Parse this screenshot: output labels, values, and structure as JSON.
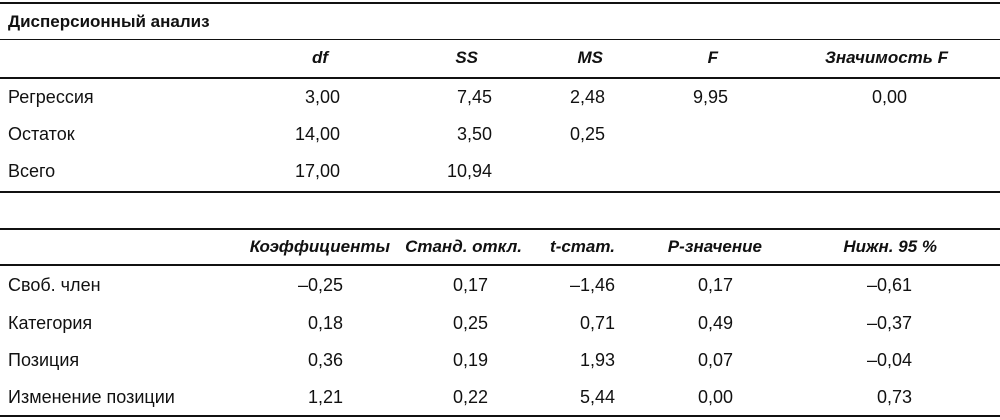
{
  "anova": {
    "title": "Дисперсионный анализ",
    "headers": [
      "df",
      "SS",
      "MS",
      "F",
      "Значимость F"
    ],
    "rows": [
      {
        "label": "Регрессия",
        "values": [
          "3,00",
          "7,45",
          "2,48",
          "9,95",
          "0,00"
        ]
      },
      {
        "label": "Остаток",
        "values": [
          "14,00",
          "3,50",
          "0,25",
          "",
          ""
        ]
      },
      {
        "label": "Всего",
        "values": [
          "17,00",
          "10,94",
          "",
          "",
          ""
        ]
      }
    ]
  },
  "coefficients": {
    "headers": [
      "Коэффициенты",
      "Станд. откл.",
      "t-стат.",
      "P-значение",
      "Нижн. 95 %"
    ],
    "rows": [
      {
        "label": "Своб. член",
        "values": [
          "–0,25",
          "0,17",
          "–1,46",
          "0,17",
          "–0,61"
        ]
      },
      {
        "label": "Категория",
        "values": [
          "0,18",
          "0,25",
          "0,71",
          "0,49",
          "–0,37"
        ]
      },
      {
        "label": "Позиция",
        "values": [
          "0,36",
          "0,19",
          "1,93",
          "0,07",
          "–0,04"
        ]
      },
      {
        "label": "Изменение позиции",
        "values": [
          "1,21",
          "0,22",
          "5,44",
          "0,00",
          "0,73"
        ]
      }
    ]
  }
}
